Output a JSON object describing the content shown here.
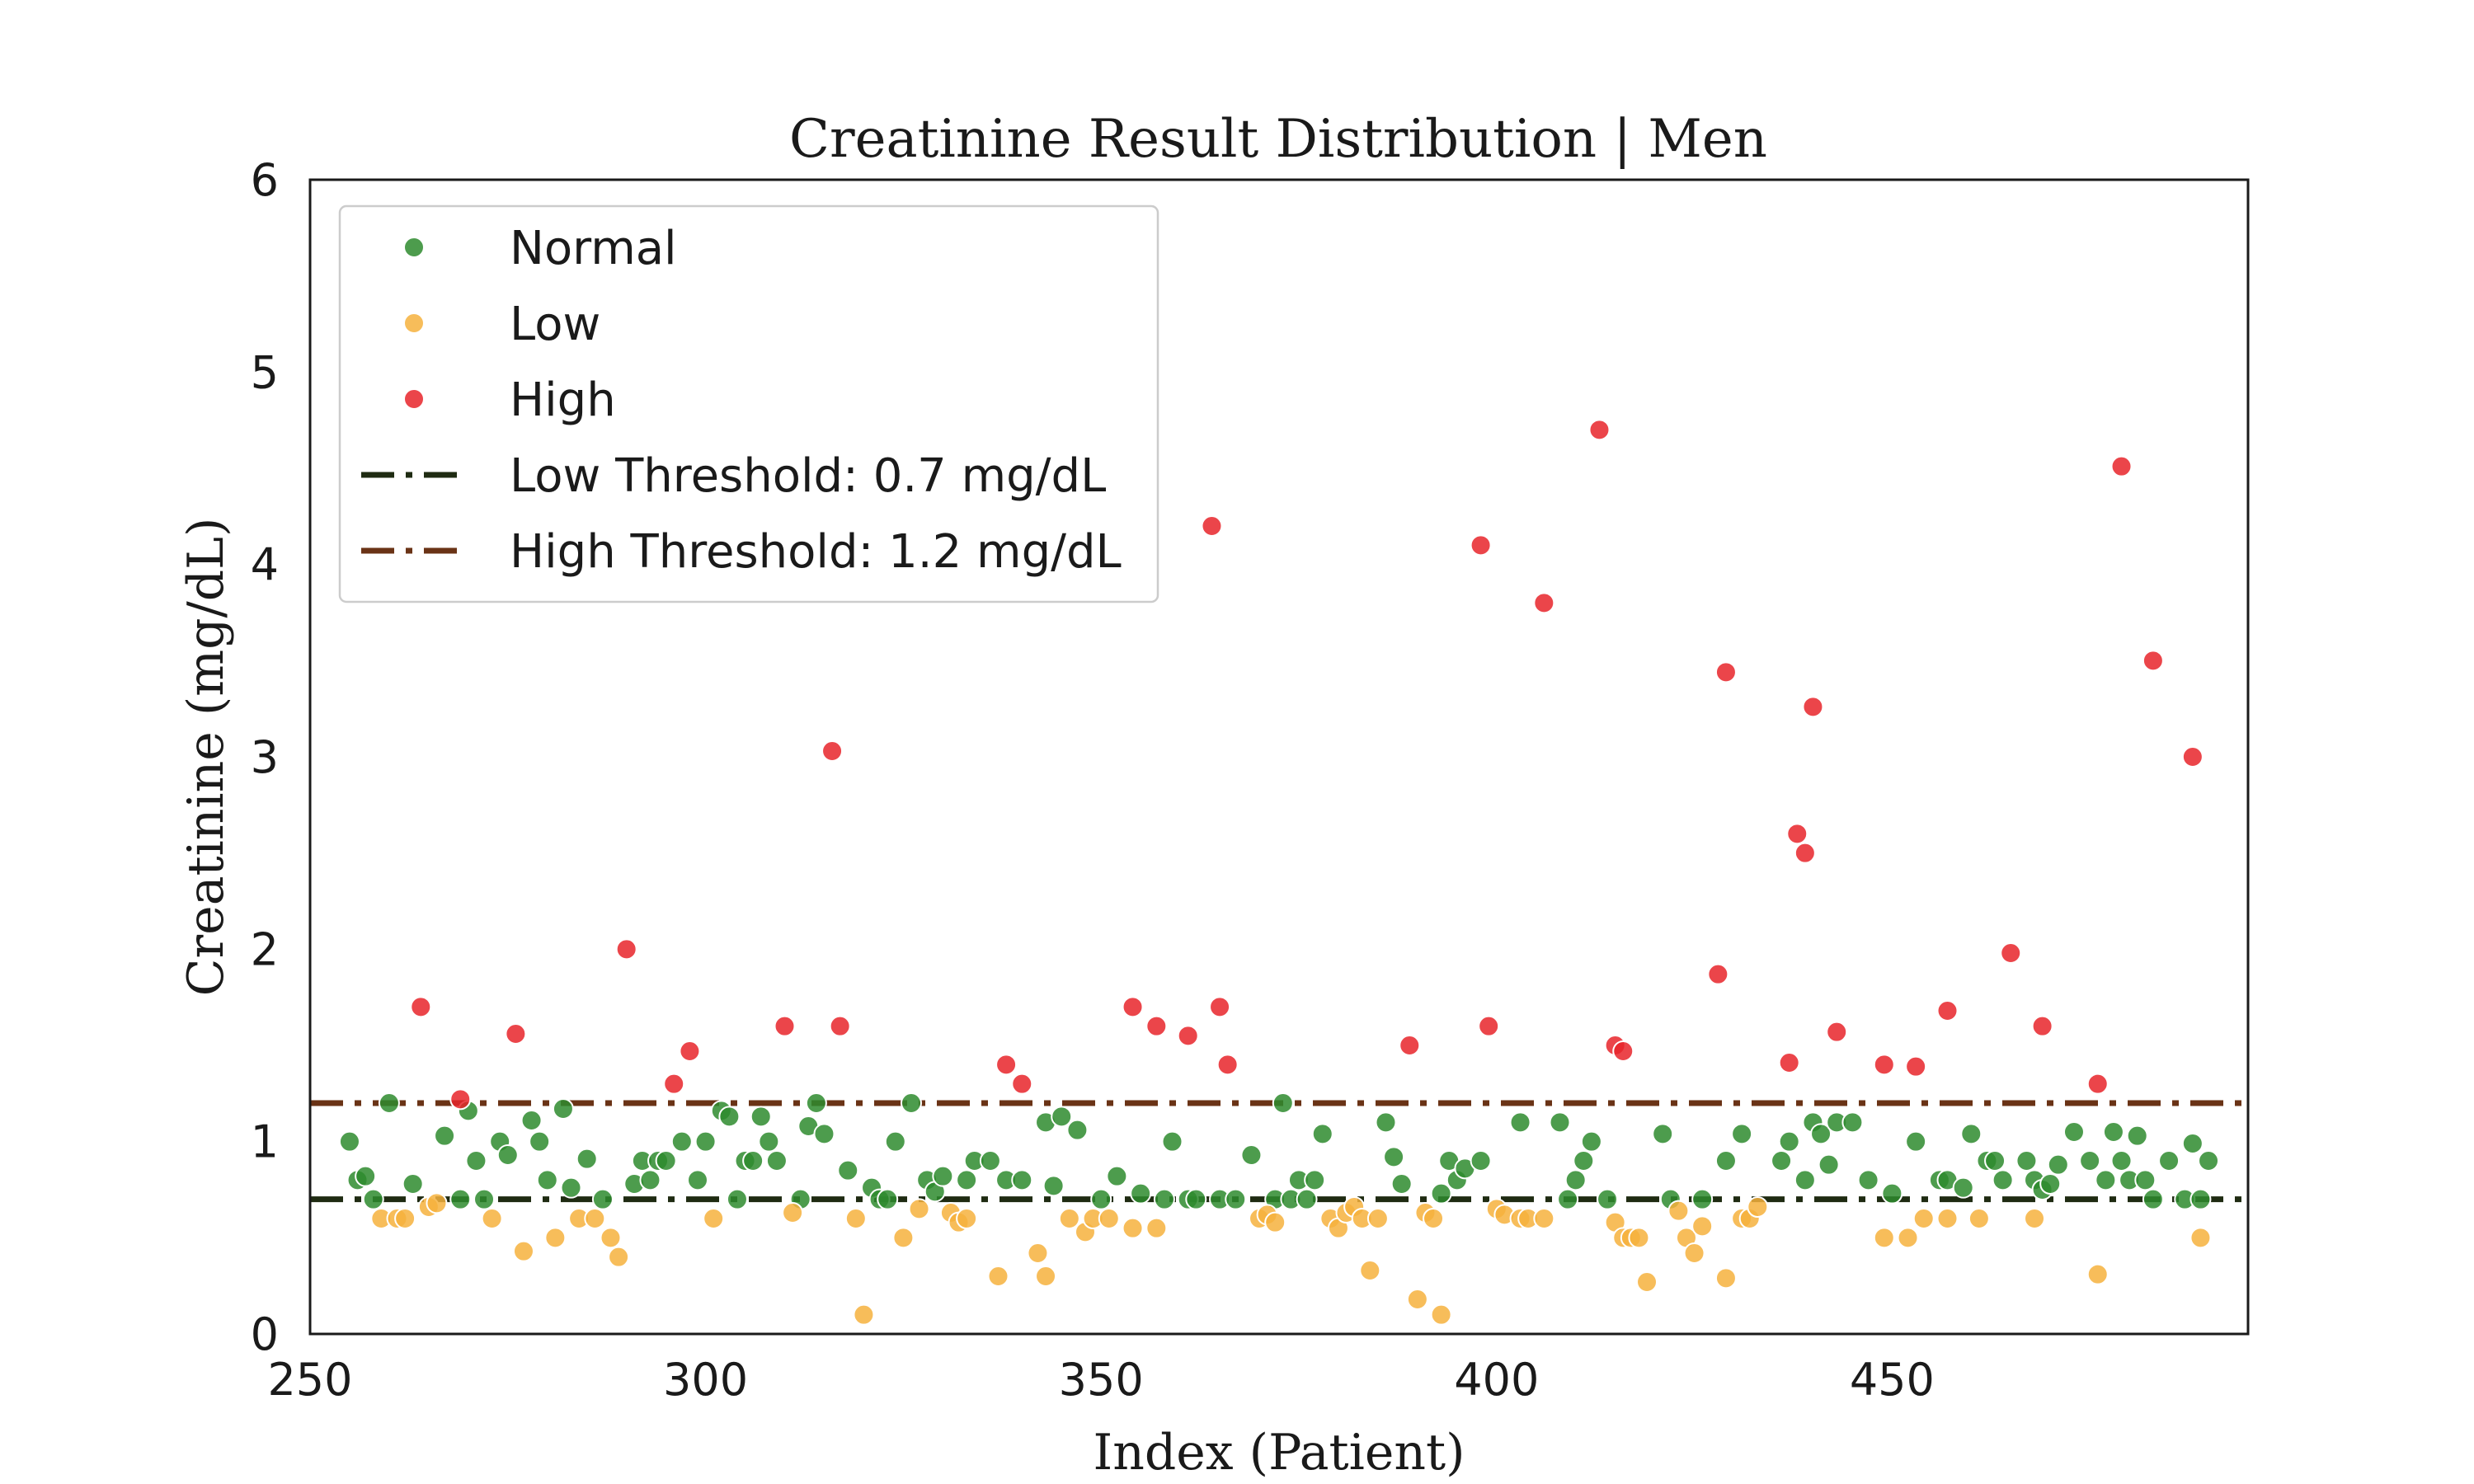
{
  "chart_data": {
    "type": "scatter",
    "title": "Creatinine Result Distribution | Men",
    "xlabel": "Index (Patient)",
    "ylabel": "Creatinine (mg/dL)",
    "xlim": [
      250,
      495
    ],
    "ylim": [
      0,
      6
    ],
    "x_ticks": [
      250,
      300,
      350,
      400,
      450
    ],
    "y_ticks": [
      0,
      1,
      2,
      3,
      4,
      5,
      6
    ],
    "grid": false,
    "legend_position": "top-left",
    "series": [
      {
        "name": "Normal",
        "color": "#2e8b2e",
        "points": [
          [
            255,
            1.0
          ],
          [
            256,
            0.8
          ],
          [
            257,
            0.82
          ],
          [
            258,
            0.7
          ],
          [
            260,
            1.2
          ],
          [
            263,
            0.78
          ],
          [
            267,
            1.03
          ],
          [
            269,
            0.7
          ],
          [
            270,
            1.16
          ],
          [
            271,
            0.9
          ],
          [
            272,
            0.7
          ],
          [
            274,
            1.0
          ],
          [
            275,
            0.93
          ],
          [
            278,
            1.11
          ],
          [
            279,
            1.0
          ],
          [
            280,
            0.8
          ],
          [
            282,
            1.17
          ],
          [
            283,
            0.76
          ],
          [
            285,
            0.91
          ],
          [
            287,
            0.7
          ],
          [
            291,
            0.78
          ],
          [
            292,
            0.9
          ],
          [
            293,
            0.8
          ],
          [
            294,
            0.9
          ],
          [
            295,
            0.9
          ],
          [
            297,
            1.0
          ],
          [
            299,
            0.8
          ],
          [
            300,
            1.0
          ],
          [
            302,
            1.16
          ],
          [
            303,
            1.13
          ],
          [
            304,
            0.7
          ],
          [
            305,
            0.9
          ],
          [
            306,
            0.9
          ],
          [
            307,
            1.13
          ],
          [
            308,
            1.0
          ],
          [
            309,
            0.9
          ],
          [
            312,
            0.7
          ],
          [
            313,
            1.08
          ],
          [
            314,
            1.2
          ],
          [
            315,
            1.04
          ],
          [
            318,
            0.85
          ],
          [
            321,
            0.76
          ],
          [
            322,
            0.7
          ],
          [
            323,
            0.7
          ],
          [
            324,
            1.0
          ],
          [
            326,
            1.2
          ],
          [
            328,
            0.8
          ],
          [
            329,
            0.74
          ],
          [
            330,
            0.82
          ],
          [
            333,
            0.8
          ],
          [
            334,
            0.9
          ],
          [
            336,
            0.9
          ],
          [
            338,
            0.8
          ],
          [
            340,
            0.8
          ],
          [
            343,
            1.1
          ],
          [
            344,
            0.77
          ],
          [
            345,
            1.13
          ],
          [
            347,
            1.06
          ],
          [
            350,
            0.7
          ],
          [
            352,
            0.82
          ],
          [
            355,
            0.73
          ],
          [
            358,
            0.7
          ],
          [
            359,
            1.0
          ],
          [
            361,
            0.7
          ],
          [
            362,
            0.7
          ],
          [
            365,
            0.7
          ],
          [
            367,
            0.7
          ],
          [
            369,
            0.93
          ],
          [
            372,
            0.7
          ],
          [
            373,
            1.2
          ],
          [
            374,
            0.7
          ],
          [
            375,
            0.8
          ],
          [
            376,
            0.7
          ],
          [
            377,
            0.8
          ],
          [
            378,
            1.04
          ],
          [
            386,
            1.1
          ],
          [
            387,
            0.92
          ],
          [
            388,
            0.78
          ],
          [
            393,
            0.73
          ],
          [
            394,
            0.9
          ],
          [
            395,
            0.8
          ],
          [
            396,
            0.86
          ],
          [
            398,
            0.9
          ],
          [
            403,
            1.1
          ],
          [
            408,
            1.1
          ],
          [
            409,
            0.7
          ],
          [
            410,
            0.8
          ],
          [
            411,
            0.9
          ],
          [
            412,
            1.0
          ],
          [
            414,
            0.7
          ],
          [
            421,
            1.04
          ],
          [
            422,
            0.7
          ],
          [
            426,
            0.7
          ],
          [
            429,
            0.9
          ],
          [
            431,
            1.04
          ],
          [
            436,
            0.9
          ],
          [
            437,
            1.0
          ],
          [
            439,
            0.8
          ],
          [
            440,
            1.1
          ],
          [
            441,
            1.04
          ],
          [
            442,
            0.88
          ],
          [
            443,
            1.1
          ],
          [
            445,
            1.1
          ],
          [
            447,
            0.8
          ],
          [
            450,
            0.73
          ],
          [
            453,
            1.0
          ],
          [
            456,
            0.8
          ],
          [
            457,
            0.8
          ],
          [
            459,
            0.76
          ],
          [
            460,
            1.04
          ],
          [
            462,
            0.9
          ],
          [
            463,
            0.9
          ],
          [
            464,
            0.8
          ],
          [
            467,
            0.9
          ],
          [
            468,
            0.8
          ],
          [
            469,
            0.75
          ],
          [
            470,
            0.78
          ],
          [
            471,
            0.88
          ],
          [
            473,
            1.05
          ],
          [
            475,
            0.9
          ],
          [
            477,
            0.8
          ],
          [
            478,
            1.05
          ],
          [
            479,
            0.9
          ],
          [
            480,
            0.8
          ],
          [
            481,
            1.03
          ],
          [
            482,
            0.8
          ],
          [
            483,
            0.7
          ],
          [
            485,
            0.9
          ],
          [
            487,
            0.7
          ],
          [
            488,
            0.99
          ],
          [
            489,
            0.7
          ],
          [
            490,
            0.9
          ]
        ]
      },
      {
        "name": "Low",
        "color": "#f6b23d",
        "points": [
          [
            259,
            0.6
          ],
          [
            261,
            0.6
          ],
          [
            262,
            0.6
          ],
          [
            265,
            0.66
          ],
          [
            266,
            0.68
          ],
          [
            273,
            0.6
          ],
          [
            277,
            0.43
          ],
          [
            281,
            0.5
          ],
          [
            284,
            0.6
          ],
          [
            286,
            0.6
          ],
          [
            288,
            0.5
          ],
          [
            289,
            0.4
          ],
          [
            301,
            0.6
          ],
          [
            311,
            0.63
          ],
          [
            319,
            0.6
          ],
          [
            320,
            0.1
          ],
          [
            325,
            0.5
          ],
          [
            327,
            0.65
          ],
          [
            331,
            0.63
          ],
          [
            332,
            0.58
          ],
          [
            333,
            0.6
          ],
          [
            337,
            0.3
          ],
          [
            342,
            0.42
          ],
          [
            343,
            0.3
          ],
          [
            346,
            0.6
          ],
          [
            348,
            0.53
          ],
          [
            349,
            0.6
          ],
          [
            351,
            0.6
          ],
          [
            354,
            0.55
          ],
          [
            357,
            0.55
          ],
          [
            370,
            0.6
          ],
          [
            371,
            0.62
          ],
          [
            372,
            0.58
          ],
          [
            379,
            0.6
          ],
          [
            380,
            0.55
          ],
          [
            381,
            0.63
          ],
          [
            382,
            0.66
          ],
          [
            383,
            0.6
          ],
          [
            384,
            0.33
          ],
          [
            385,
            0.6
          ],
          [
            390,
            0.18
          ],
          [
            391,
            0.63
          ],
          [
            392,
            0.6
          ],
          [
            393,
            0.1
          ],
          [
            400,
            0.65
          ],
          [
            401,
            0.62
          ],
          [
            403,
            0.6
          ],
          [
            404,
            0.6
          ],
          [
            406,
            0.6
          ],
          [
            415,
            0.58
          ],
          [
            416,
            0.5
          ],
          [
            417,
            0.5
          ],
          [
            418,
            0.5
          ],
          [
            419,
            0.27
          ],
          [
            423,
            0.64
          ],
          [
            424,
            0.5
          ],
          [
            425,
            0.42
          ],
          [
            426,
            0.56
          ],
          [
            429,
            0.29
          ],
          [
            431,
            0.6
          ],
          [
            432,
            0.6
          ],
          [
            433,
            0.66
          ],
          [
            449,
            0.5
          ],
          [
            452,
            0.5
          ],
          [
            454,
            0.6
          ],
          [
            457,
            0.6
          ],
          [
            461,
            0.6
          ],
          [
            468,
            0.6
          ],
          [
            476,
            0.31
          ],
          [
            489,
            0.5
          ]
        ]
      },
      {
        "name": "High",
        "color": "#e8242a",
        "points": [
          [
            264,
            1.7
          ],
          [
            269,
            1.22
          ],
          [
            276,
            1.56
          ],
          [
            290,
            2.0
          ],
          [
            296,
            1.3
          ],
          [
            298,
            1.47
          ],
          [
            310,
            1.6
          ],
          [
            316,
            3.03
          ],
          [
            317,
            1.6
          ],
          [
            338,
            1.4
          ],
          [
            340,
            1.3
          ],
          [
            354,
            1.7
          ],
          [
            357,
            1.6
          ],
          [
            361,
            1.55
          ],
          [
            364,
            4.2
          ],
          [
            365,
            1.7
          ],
          [
            366,
            1.4
          ],
          [
            389,
            1.5
          ],
          [
            398,
            4.1
          ],
          [
            399,
            1.6
          ],
          [
            406,
            3.8
          ],
          [
            413,
            4.7
          ],
          [
            415,
            1.5
          ],
          [
            416,
            1.47
          ],
          [
            428,
            1.87
          ],
          [
            429,
            3.44
          ],
          [
            437,
            1.41
          ],
          [
            438,
            2.6
          ],
          [
            439,
            2.5
          ],
          [
            440,
            3.26
          ],
          [
            443,
            1.57
          ],
          [
            449,
            1.4
          ],
          [
            453,
            1.39
          ],
          [
            457,
            1.68
          ],
          [
            465,
            1.98
          ],
          [
            469,
            1.6
          ],
          [
            476,
            1.3
          ],
          [
            479,
            4.51
          ],
          [
            483,
            3.5
          ],
          [
            488,
            3.0
          ]
        ]
      }
    ],
    "thresholds": [
      {
        "name": "Low Threshold: 0.7 mg/dL",
        "value": 0.7,
        "color": "#1f2b12"
      },
      {
        "name": "High Threshold: 1.2 mg/dL",
        "value": 1.2,
        "color": "#6a3316"
      }
    ]
  }
}
